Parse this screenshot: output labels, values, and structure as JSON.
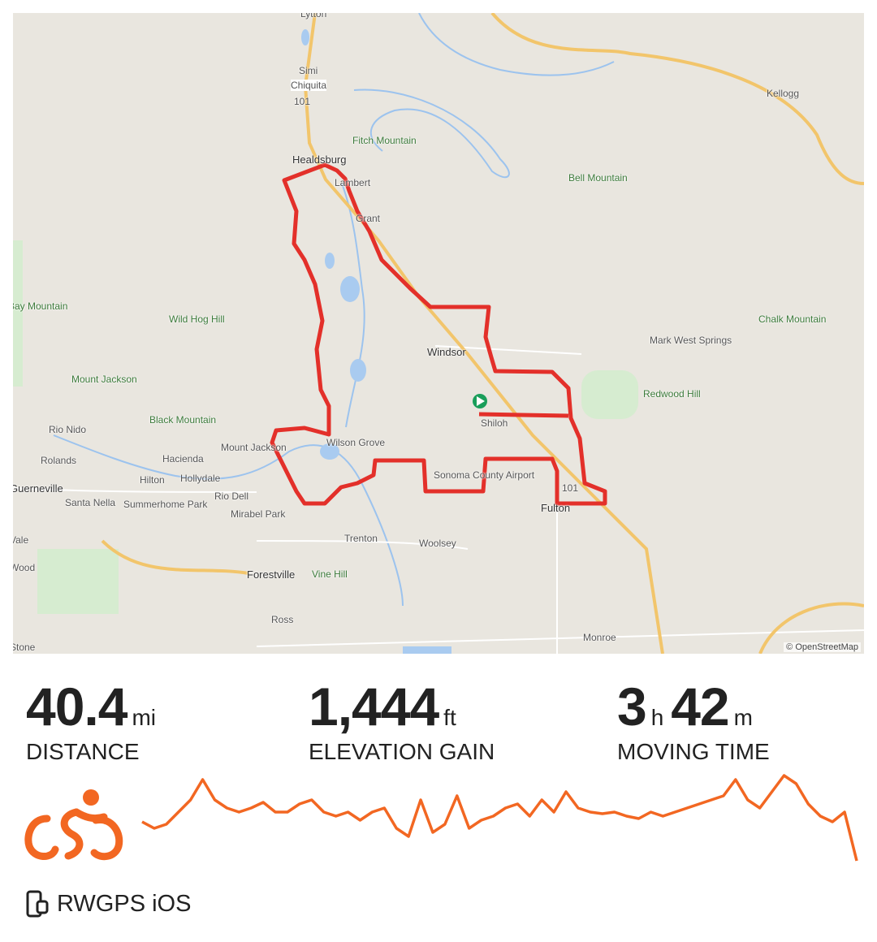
{
  "map": {
    "labels": [
      "Lytton",
      "Simi",
      "Chiquita",
      "101",
      "Fitch Mountain",
      "Healdsburg",
      "Lambert",
      "Grant",
      "Kellogg",
      "Bell Mountain",
      "Bay Mountain",
      "Wild Hog Hill",
      "Mount Jackson",
      "Black Mountain",
      "Windsor",
      "Mark West Springs",
      "Chalk Mountain",
      "Redwood Hill",
      "Shiloh",
      "Rio Nido",
      "Rolands",
      "Guerneville",
      "Hacienda",
      "Mount Jackson",
      "Wilson Grove",
      "Hilton",
      "Hollydale",
      "Santa Nella",
      "Summerhome Park",
      "Rio Dell",
      "Mirabel Park",
      "Sonoma County Airport",
      "101",
      "Fulton",
      "Trenton",
      "Woolsey",
      "Forestville",
      "Vine Hill",
      "Ross",
      "Monroe",
      "Vale",
      "Wood",
      "Stone"
    ],
    "attribution": "© OpenStreetMap",
    "route_color": "#e3302a",
    "start_marker_color": "#1a9e5a"
  },
  "stats": {
    "distance": {
      "value": "40.4",
      "unit": "mi",
      "label": "DISTANCE"
    },
    "elevation": {
      "value": "1,444",
      "unit": "ft",
      "label": "ELEVATION GAIN"
    },
    "moving_time": {
      "hours": "3",
      "h_unit": "h",
      "minutes": "42",
      "m_unit": "m",
      "label": "MOVING TIME"
    }
  },
  "activity_icon": "cyclist-icon",
  "accent_color": "#f26722",
  "elevation_profile": [
    48,
    40,
    45,
    60,
    75,
    100,
    75,
    65,
    60,
    65,
    72,
    60,
    60,
    70,
    75,
    60,
    55,
    60,
    50,
    60,
    65,
    40,
    30,
    75,
    35,
    45,
    80,
    40,
    50,
    55,
    65,
    70,
    55,
    75,
    60,
    85,
    65,
    60,
    58,
    60,
    55,
    52,
    60,
    55,
    60,
    65,
    70,
    75,
    80,
    100,
    75,
    65,
    85,
    105,
    95,
    70,
    55,
    48,
    60,
    0
  ],
  "device": {
    "icon": "phone-watch-icon",
    "label": "RWGPS iOS"
  }
}
